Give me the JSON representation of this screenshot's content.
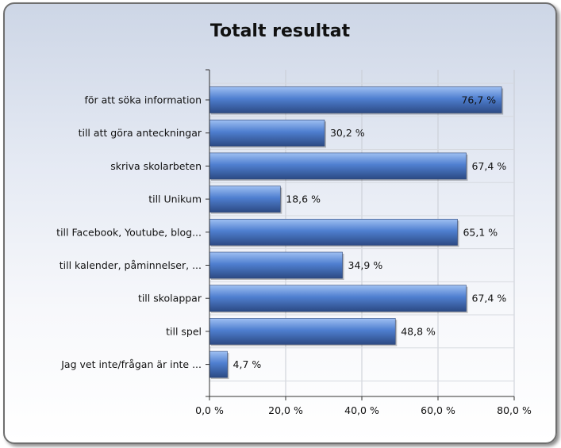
{
  "chart_data": {
    "type": "bar",
    "orientation": "horizontal",
    "title": "Totalt resultat",
    "categories": [
      "för att söka information",
      "till att göra anteckningar",
      "skriva skolarbeten",
      "till Unikum",
      "till Facebook, Youtube, blog...",
      "till kalender, påminnelser, ...",
      "till skolappar",
      "till spel",
      "Jag vet inte/frågan är inte ..."
    ],
    "values": [
      76.7,
      30.2,
      67.4,
      18.6,
      65.1,
      34.9,
      67.4,
      48.8,
      4.7
    ],
    "value_labels": [
      "76,7 %",
      "30,2 %",
      "67,4 %",
      "18,6 %",
      "65,1 %",
      "34,9 %",
      "67,4 %",
      "48,8 %",
      "4,7 %"
    ],
    "xlim": [
      0,
      80
    ],
    "x_ticks": [
      0,
      20,
      40,
      60,
      80
    ],
    "x_tick_labels": [
      "0,0 %",
      "20,0 %",
      "40,0 %",
      "60,0 %",
      "80,0 %"
    ],
    "grid": true,
    "bar_color": "#4f7fd0",
    "bar_color_dark": "#2c4a84",
    "bar_color_light": "#9fc0f2"
  }
}
